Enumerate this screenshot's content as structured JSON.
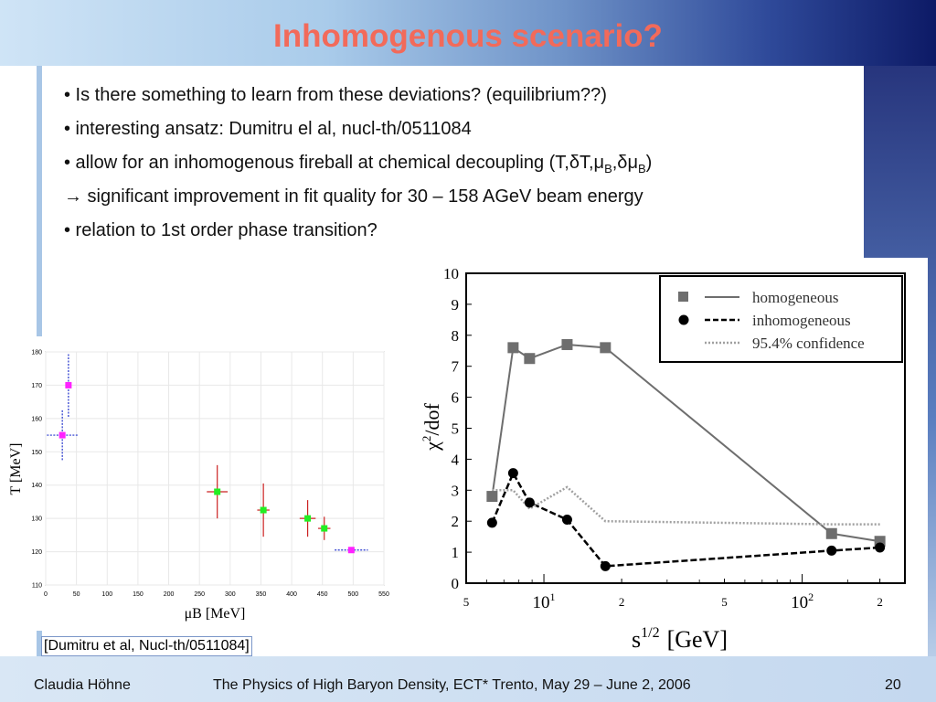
{
  "slide": {
    "title": "Inhomogenous scenario?",
    "bullets": [
      "• Is there something to learn from these deviations? (equilibrium??)",
      "• interesting ansatz: Dumitru el al, nucl-th/0511084",
      "• allow for an inhomogenous fireball at chemical decoupling (T,δT,μ",
      "→ significant improvement in fit quality for 30 – 158 AGeV beam energy",
      "• relation to 1st order phase transition?"
    ],
    "bullet3_parts": {
      "sub1": "B",
      "mid": ",δμ",
      "sub2": "B",
      "end": ")"
    },
    "citation": "[Dumitru et al, Nucl-th/0511084]",
    "footer": {
      "author": "Claudia Höhne",
      "conference": "The Physics of High Baryon Density, ECT* Trento, May 29 – June 2, 2006",
      "page": "20"
    }
  },
  "chart_data": [
    {
      "type": "scatter",
      "xlabel": "μB [MeV]",
      "ylabel": "T [MeV]",
      "xlim": [
        0,
        550
      ],
      "ylim": [
        110,
        180
      ],
      "xticks": [
        0,
        50,
        100,
        150,
        200,
        250,
        300,
        350,
        400,
        450,
        500,
        550
      ],
      "yticks": [
        110,
        120,
        130,
        140,
        150,
        160,
        170,
        180
      ],
      "series": [
        {
          "color": "#ff22ff",
          "errcolor": "#2233cc",
          "points": [
            {
              "x": 27,
              "y": 155,
              "xerr": 25,
              "yerr": 7.5
            },
            {
              "x": 37,
              "y": 170,
              "xerr": 0,
              "yerr": 9.5
            },
            {
              "x": 497,
              "y": 120.5,
              "xerr": 27,
              "yerr": 0.7
            }
          ]
        },
        {
          "color": "#22ee22",
          "errcolor": "#cc2222",
          "points": [
            {
              "x": 279,
              "y": 138,
              "xerr": 17,
              "yerr": 8
            },
            {
              "x": 354,
              "y": 132.5,
              "xerr": 10,
              "yerr": 8
            },
            {
              "x": 426,
              "y": 130,
              "xerr": 13,
              "yerr": 5.5
            },
            {
              "x": 453,
              "y": 127,
              "xerr": 10,
              "yerr": 3.5
            }
          ]
        }
      ]
    },
    {
      "type": "line",
      "xlabel": "s1/2 [GeV]",
      "ylabel": "χ2/dof",
      "xscale": "log",
      "xlim": [
        5,
        250
      ],
      "ylim": [
        0,
        10
      ],
      "yticks": [
        0,
        1,
        2,
        3,
        4,
        5,
        6,
        7,
        8,
        9,
        10
      ],
      "xticks_labels": [
        {
          "x": 5,
          "label": "5"
        },
        {
          "x": 10,
          "label": "10",
          "sup": "1"
        },
        {
          "x": 20,
          "label": "2"
        },
        {
          "x": 50,
          "label": "5"
        },
        {
          "x": 100,
          "label": "10",
          "sup": "2"
        },
        {
          "x": 200,
          "label": "2"
        }
      ],
      "legend_position": "top-right",
      "series": [
        {
          "name": "homogeneous",
          "style": "solid-square",
          "color": "#6e6e6e",
          "x": [
            6.3,
            7.6,
            8.8,
            12.3,
            17.3,
            130,
            200
          ],
          "y": [
            2.8,
            7.6,
            7.25,
            7.7,
            7.6,
            1.6,
            1.35
          ]
        },
        {
          "name": "inhomogeneous",
          "style": "dashed-circle",
          "color": "#000000",
          "x": [
            6.3,
            7.6,
            8.8,
            12.3,
            17.3,
            130,
            200
          ],
          "y": [
            1.95,
            3.55,
            2.6,
            2.05,
            0.55,
            1.05,
            1.15
          ]
        },
        {
          "name": "95.4% confidence",
          "style": "dotted",
          "color": "#a0a0a0",
          "x": [
            6.3,
            7.6,
            8.8,
            12.3,
            17.3,
            130,
            200
          ],
          "y": [
            3.0,
            3.0,
            2.4,
            3.1,
            2.0,
            1.9,
            1.9
          ]
        }
      ]
    }
  ]
}
